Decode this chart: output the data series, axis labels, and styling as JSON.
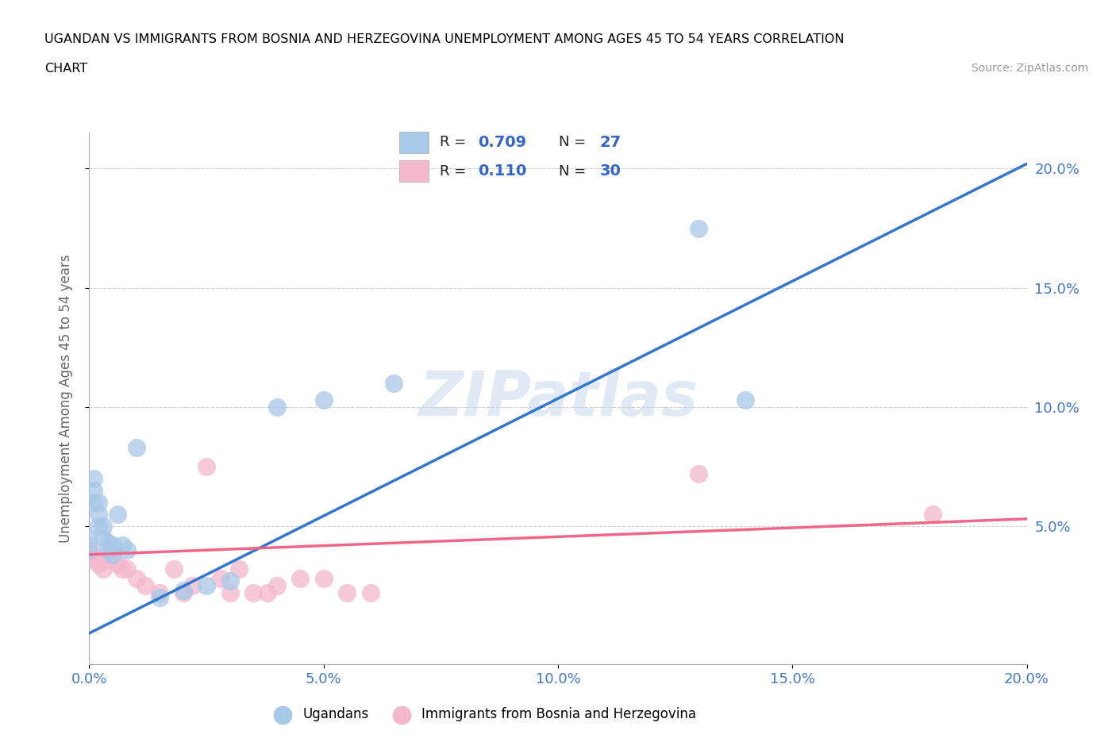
{
  "title_line1": "UGANDAN VS IMMIGRANTS FROM BOSNIA AND HERZEGOVINA UNEMPLOYMENT AMONG AGES 45 TO 54 YEARS CORRELATION",
  "title_line2": "CHART",
  "source": "Source: ZipAtlas.com",
  "ylabel": "Unemployment Among Ages 45 to 54 years",
  "xlim": [
    0.0,
    0.2
  ],
  "ylim": [
    -0.008,
    0.215
  ],
  "xticks": [
    0.0,
    0.05,
    0.1,
    0.15,
    0.2
  ],
  "yticks": [
    0.05,
    0.1,
    0.15,
    0.2
  ],
  "xticklabels": [
    "0.0%",
    "5.0%",
    "10.0%",
    "15.0%",
    "20.0%"
  ],
  "yticklabels": [
    "5.0%",
    "10.0%",
    "15.0%",
    "20.0%"
  ],
  "watermark": "ZIPatlas",
  "blue_R": "0.709",
  "blue_N": "27",
  "pink_R": "0.110",
  "pink_N": "30",
  "blue_color": "#a8c8e8",
  "pink_color": "#f4b8cc",
  "blue_line_color": "#3377cc",
  "pink_line_color": "#ee6688",
  "legend_label_blue": "Ugandans",
  "legend_label_pink": "Immigrants from Bosnia and Herzegovina",
  "blue_scatter_x": [
    0.0,
    0.0,
    0.001,
    0.001,
    0.001,
    0.002,
    0.002,
    0.002,
    0.003,
    0.003,
    0.004,
    0.004,
    0.005,
    0.005,
    0.006,
    0.007,
    0.008,
    0.01,
    0.015,
    0.02,
    0.025,
    0.03,
    0.04,
    0.05,
    0.065,
    0.13,
    0.14
  ],
  "blue_scatter_y": [
    0.04,
    0.045,
    0.06,
    0.065,
    0.07,
    0.05,
    0.055,
    0.06,
    0.045,
    0.05,
    0.04,
    0.043,
    0.038,
    0.042,
    0.055,
    0.042,
    0.04,
    0.083,
    0.02,
    0.023,
    0.025,
    0.027,
    0.1,
    0.103,
    0.11,
    0.175,
    0.103
  ],
  "pink_scatter_x": [
    0.0,
    0.0,
    0.001,
    0.001,
    0.002,
    0.003,
    0.004,
    0.005,
    0.006,
    0.007,
    0.008,
    0.01,
    0.012,
    0.015,
    0.018,
    0.02,
    0.022,
    0.025,
    0.028,
    0.03,
    0.032,
    0.035,
    0.038,
    0.04,
    0.045,
    0.05,
    0.055,
    0.06,
    0.13,
    0.18
  ],
  "pink_scatter_y": [
    0.038,
    0.042,
    0.036,
    0.038,
    0.034,
    0.032,
    0.036,
    0.038,
    0.034,
    0.032,
    0.032,
    0.028,
    0.025,
    0.022,
    0.032,
    0.022,
    0.025,
    0.075,
    0.028,
    0.022,
    0.032,
    0.022,
    0.022,
    0.025,
    0.028,
    0.028,
    0.022,
    0.022,
    0.072,
    0.055
  ],
  "blue_trend_x": [
    0.0,
    0.2
  ],
  "blue_trend_y_start": 0.005,
  "blue_trend_y_end": 0.202,
  "pink_trend_x": [
    0.0,
    0.2
  ],
  "pink_trend_y_start": 0.038,
  "pink_trend_y_end": 0.053,
  "background_color": "#ffffff",
  "grid_color": "#cccccc"
}
